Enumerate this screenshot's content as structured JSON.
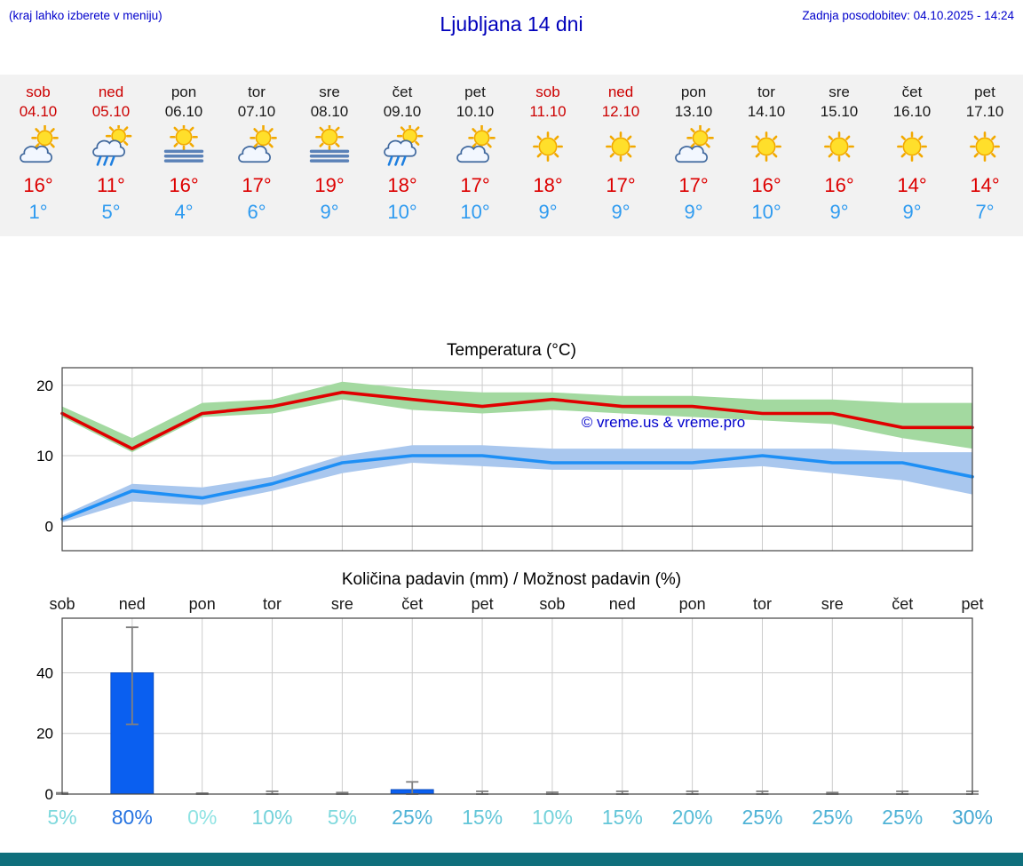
{
  "header": {
    "hint": "(kraj lahko izberete v meniju)",
    "title": "Ljubljana 14 dni",
    "updated": "Zadnja posodobitev: 04.10.2025 - 14:24"
  },
  "watermark": "© vreme.us & vreme.pro",
  "colors": {
    "link_blue": "#0000cc",
    "title_blue": "#0000bb",
    "weekend_red": "#cc0000",
    "high_temp_red": "#dd0000",
    "low_temp_blue": "#2f9bf0",
    "strip_bg": "#f2f2f2",
    "footer_teal": "#0f6f7c"
  },
  "forecast": {
    "days": [
      {
        "name": "sob",
        "date": "04.10",
        "weekend": true,
        "icon": "sun-cloud",
        "high": "16°",
        "low": "1°"
      },
      {
        "name": "ned",
        "date": "05.10",
        "weekend": true,
        "icon": "rain-sun",
        "high": "11°",
        "low": "5°"
      },
      {
        "name": "pon",
        "date": "06.10",
        "weekend": false,
        "icon": "fog-sun",
        "high": "16°",
        "low": "4°"
      },
      {
        "name": "tor",
        "date": "07.10",
        "weekend": false,
        "icon": "sun-cloud",
        "high": "17°",
        "low": "6°"
      },
      {
        "name": "sre",
        "date": "08.10",
        "weekend": false,
        "icon": "fog-sun",
        "high": "19°",
        "low": "9°"
      },
      {
        "name": "čet",
        "date": "09.10",
        "weekend": false,
        "icon": "rain-sun",
        "high": "18°",
        "low": "10°"
      },
      {
        "name": "pet",
        "date": "10.10",
        "weekend": false,
        "icon": "sun-cloud",
        "high": "17°",
        "low": "10°"
      },
      {
        "name": "sob",
        "date": "11.10",
        "weekend": true,
        "icon": "sun",
        "high": "18°",
        "low": "9°"
      },
      {
        "name": "ned",
        "date": "12.10",
        "weekend": true,
        "icon": "sun",
        "high": "17°",
        "low": "9°"
      },
      {
        "name": "pon",
        "date": "13.10",
        "weekend": false,
        "icon": "sun-cloud",
        "high": "17°",
        "low": "9°"
      },
      {
        "name": "tor",
        "date": "14.10",
        "weekend": false,
        "icon": "sun",
        "high": "16°",
        "low": "10°"
      },
      {
        "name": "sre",
        "date": "15.10",
        "weekend": false,
        "icon": "sun",
        "high": "16°",
        "low": "9°"
      },
      {
        "name": "čet",
        "date": "16.10",
        "weekend": false,
        "icon": "sun",
        "high": "14°",
        "low": "9°"
      },
      {
        "name": "pet",
        "date": "17.10",
        "weekend": false,
        "icon": "sun",
        "high": "14°",
        "low": "7°"
      }
    ]
  },
  "chart_data": [
    {
      "type": "line",
      "title": "Temperatura (°C)",
      "categories": [
        "sob",
        "ned",
        "pon",
        "tor",
        "sre",
        "čet",
        "pet",
        "sob",
        "ned",
        "pon",
        "tor",
        "sre",
        "čet",
        "pet"
      ],
      "series": [
        {
          "name": "max-temp",
          "color": "#e00000",
          "values": [
            16,
            11,
            16,
            17,
            19,
            18,
            17,
            18,
            17,
            17,
            16,
            16,
            14,
            14
          ]
        },
        {
          "name": "min-temp",
          "color": "#1e8ff5",
          "values": [
            1,
            5,
            4,
            6,
            9,
            10,
            10,
            9,
            9,
            9,
            10,
            9,
            9,
            7
          ]
        }
      ],
      "bands": [
        {
          "name": "max-range",
          "color": "#a3d9a0",
          "upper": [
            17,
            12.5,
            17.5,
            18,
            20.5,
            19.5,
            19,
            19,
            18.5,
            18.5,
            18,
            18,
            17.5,
            17.5
          ],
          "lower": [
            15.5,
            10.5,
            15.5,
            16,
            18,
            16.5,
            16,
            16.5,
            16,
            15.5,
            15,
            14.5,
            12.5,
            11
          ]
        },
        {
          "name": "min-range",
          "color": "#a9c7ee",
          "upper": [
            1.5,
            6,
            5.5,
            7,
            10,
            11.5,
            11.5,
            11,
            11,
            11,
            11,
            11,
            10.5,
            10.5
          ],
          "lower": [
            0.5,
            3.5,
            3,
            5,
            7.5,
            9,
            8.5,
            8,
            8,
            8,
            8.5,
            7.5,
            6.5,
            4.5
          ]
        }
      ],
      "ylim": [
        -3.5,
        22.5
      ],
      "yticks": [
        0,
        10,
        20
      ],
      "grid": true,
      "legend": "none"
    },
    {
      "type": "bar",
      "title": "Količina padavin (mm) / Možnost padavin (%)",
      "categories": [
        "sob",
        "ned",
        "pon",
        "tor",
        "sre",
        "čet",
        "pet",
        "sob",
        "ned",
        "pon",
        "tor",
        "sre",
        "čet",
        "pet"
      ],
      "values": [
        0,
        40,
        0,
        0,
        0,
        1.5,
        0,
        0,
        0,
        0,
        0,
        0,
        0,
        0
      ],
      "whisker_low": [
        0,
        23,
        0,
        0,
        0,
        0,
        0,
        0,
        0,
        0,
        0,
        0,
        0,
        0
      ],
      "whisker_high": [
        0.4,
        55,
        0.3,
        0.9,
        0.5,
        4,
        0.9,
        0.6,
        0.9,
        0.9,
        0.9,
        0.5,
        0.9,
        0.9
      ],
      "probabilities": [
        "5%",
        "80%",
        "0%",
        "10%",
        "5%",
        "25%",
        "15%",
        "10%",
        "15%",
        "20%",
        "25%",
        "25%",
        "25%",
        "30%"
      ],
      "prob_colors": [
        "#7fd9dd",
        "#2673e0",
        "#8fe3e3",
        "#74d2da",
        "#7fd9dd",
        "#4fb3d6",
        "#63c6d8",
        "#74d2da",
        "#63c6d8",
        "#58bcd6",
        "#4fb3d6",
        "#4fb3d6",
        "#4fb3d6",
        "#45a8d2"
      ],
      "ylim": [
        0,
        58
      ],
      "yticks": [
        0,
        20,
        40
      ],
      "bar_color": "#0a5ff0",
      "grid": true
    }
  ]
}
